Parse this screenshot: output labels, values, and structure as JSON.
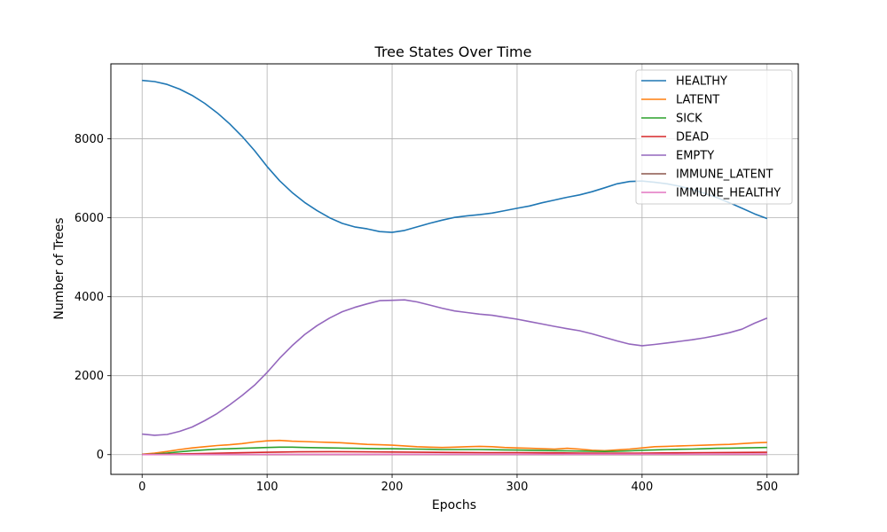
{
  "chart_data": {
    "type": "line",
    "title": "Tree States Over Time",
    "xlabel": "Epochs",
    "ylabel": "Number of Trees",
    "xlim": [
      -25,
      525
    ],
    "ylim": [
      -500,
      9900
    ],
    "xticks": [
      0,
      100,
      200,
      300,
      400,
      500
    ],
    "yticks": [
      0,
      2000,
      4000,
      6000,
      8000
    ],
    "grid": true,
    "legend_position": "top-right",
    "series": [
      {
        "name": "HEALTHY",
        "color": "#1f77b4",
        "x": [
          0,
          10,
          20,
          30,
          40,
          50,
          60,
          70,
          80,
          90,
          100,
          110,
          120,
          130,
          140,
          150,
          160,
          170,
          180,
          190,
          200,
          210,
          220,
          230,
          240,
          250,
          260,
          270,
          280,
          290,
          300,
          310,
          320,
          330,
          340,
          350,
          360,
          370,
          380,
          390,
          400,
          410,
          420,
          430,
          440,
          450,
          460,
          470,
          480,
          490,
          500
        ],
        "values": [
          9480,
          9450,
          9380,
          9260,
          9100,
          8900,
          8660,
          8380,
          8060,
          7700,
          7300,
          6940,
          6640,
          6390,
          6180,
          6000,
          5860,
          5770,
          5720,
          5650,
          5630,
          5680,
          5770,
          5860,
          5940,
          6010,
          6050,
          6080,
          6120,
          6180,
          6240,
          6300,
          6380,
          6450,
          6520,
          6580,
          6660,
          6760,
          6860,
          6920,
          6930,
          6900,
          6860,
          6800,
          6720,
          6620,
          6510,
          6380,
          6240,
          6100,
          5980
        ]
      },
      {
        "name": "LATENT",
        "color": "#ff7f0e",
        "x": [
          0,
          10,
          20,
          30,
          40,
          50,
          60,
          70,
          80,
          90,
          100,
          110,
          120,
          130,
          140,
          150,
          160,
          170,
          180,
          190,
          200,
          210,
          220,
          230,
          240,
          250,
          260,
          270,
          280,
          290,
          300,
          310,
          320,
          330,
          340,
          350,
          360,
          370,
          380,
          390,
          400,
          410,
          420,
          430,
          440,
          450,
          460,
          470,
          480,
          490,
          500
        ],
        "values": [
          10,
          40,
          80,
          130,
          170,
          200,
          230,
          250,
          280,
          320,
          350,
          360,
          340,
          330,
          320,
          310,
          300,
          280,
          260,
          250,
          240,
          220,
          200,
          190,
          180,
          190,
          200,
          210,
          200,
          180,
          170,
          160,
          150,
          140,
          160,
          140,
          110,
          100,
          120,
          140,
          170,
          200,
          210,
          220,
          230,
          240,
          250,
          260,
          280,
          300,
          310
        ]
      },
      {
        "name": "SICK",
        "color": "#2ca02c",
        "x": [
          0,
          10,
          20,
          30,
          40,
          50,
          60,
          70,
          80,
          90,
          100,
          110,
          120,
          130,
          140,
          150,
          160,
          170,
          180,
          190,
          200,
          210,
          220,
          230,
          240,
          250,
          260,
          270,
          280,
          290,
          300,
          310,
          320,
          330,
          340,
          350,
          360,
          370,
          380,
          390,
          400,
          410,
          420,
          430,
          440,
          450,
          460,
          470,
          480,
          490,
          500
        ],
        "values": [
          0,
          15,
          40,
          70,
          100,
          120,
          140,
          150,
          160,
          170,
          180,
          190,
          190,
          180,
          175,
          170,
          165,
          160,
          155,
          150,
          150,
          145,
          140,
          135,
          130,
          130,
          130,
          130,
          125,
          120,
          115,
          110,
          105,
          100,
          95,
          90,
          85,
          80,
          85,
          95,
          110,
          120,
          130,
          135,
          140,
          150,
          160,
          165,
          170,
          175,
          180
        ]
      },
      {
        "name": "DEAD",
        "color": "#d62728",
        "x": [
          0,
          25,
          50,
          75,
          100,
          125,
          150,
          175,
          200,
          225,
          250,
          275,
          300,
          325,
          350,
          375,
          400,
          425,
          450,
          475,
          500
        ],
        "values": [
          0,
          15,
          30,
          45,
          60,
          70,
          75,
          70,
          65,
          60,
          55,
          50,
          50,
          45,
          40,
          35,
          40,
          45,
          50,
          55,
          60
        ]
      },
      {
        "name": "EMPTY",
        "color": "#9467bd",
        "x": [
          0,
          10,
          20,
          30,
          40,
          50,
          60,
          70,
          80,
          90,
          100,
          110,
          120,
          130,
          140,
          150,
          160,
          170,
          180,
          190,
          200,
          210,
          220,
          230,
          240,
          250,
          260,
          270,
          280,
          290,
          300,
          310,
          320,
          330,
          340,
          350,
          360,
          370,
          380,
          390,
          400,
          410,
          420,
          430,
          440,
          450,
          460,
          470,
          480,
          490,
          500
        ],
        "values": [
          520,
          490,
          510,
          590,
          700,
          860,
          1040,
          1260,
          1500,
          1760,
          2080,
          2440,
          2760,
          3040,
          3270,
          3460,
          3620,
          3730,
          3820,
          3900,
          3910,
          3920,
          3870,
          3790,
          3710,
          3640,
          3600,
          3560,
          3530,
          3480,
          3430,
          3370,
          3310,
          3250,
          3190,
          3140,
          3060,
          2970,
          2880,
          2800,
          2760,
          2790,
          2830,
          2870,
          2910,
          2960,
          3020,
          3090,
          3180,
          3330,
          3460
        ]
      },
      {
        "name": "IMMUNE_LATENT",
        "color": "#8c564b",
        "x": [
          0,
          100,
          200,
          300,
          400,
          500
        ],
        "values": [
          0,
          2,
          3,
          3,
          3,
          4
        ]
      },
      {
        "name": "IMMUNE_HEALTHY",
        "color": "#e377c2",
        "x": [
          0,
          100,
          200,
          300,
          400,
          500
        ],
        "values": [
          0,
          5,
          8,
          10,
          12,
          15
        ]
      }
    ]
  }
}
